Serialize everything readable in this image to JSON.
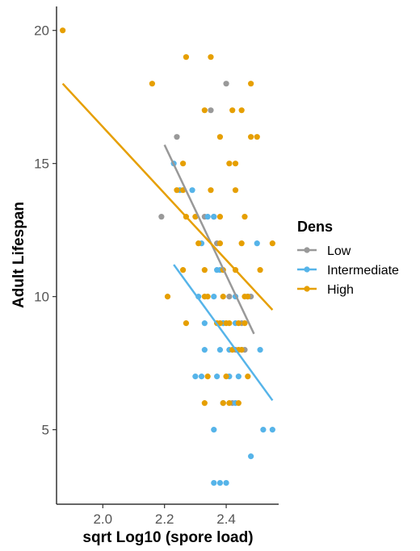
{
  "chart_data": {
    "type": "scatter",
    "title": "",
    "xlabel": "sqrt Log10 (spore load)",
    "ylabel": "Adult Lifespan",
    "xlim": [
      1.85,
      2.57
    ],
    "ylim": [
      2.2,
      20.9
    ],
    "x_ticks": [
      2.0,
      2.2,
      2.4
    ],
    "x_tick_labels": [
      "2.0",
      "2.2",
      "2.4"
    ],
    "y_ticks": [
      5,
      10,
      15,
      20
    ],
    "y_tick_labels": [
      "5",
      "10",
      "15",
      "20"
    ],
    "grid": false,
    "legend": {
      "title": "Dens",
      "position": "right"
    },
    "series": [
      {
        "name": "Low",
        "color": "#999999",
        "points": [
          [
            2.19,
            13
          ],
          [
            2.24,
            16
          ],
          [
            2.35,
            17
          ],
          [
            2.36,
            13
          ],
          [
            2.4,
            18
          ],
          [
            2.37,
            12
          ],
          [
            2.39,
            9
          ],
          [
            2.41,
            10
          ],
          [
            2.43,
            8
          ],
          [
            2.42,
            6
          ],
          [
            2.45,
            9
          ],
          [
            2.46,
            8
          ],
          [
            2.48,
            10
          ],
          [
            2.33,
            13
          ]
        ],
        "trend": [
          [
            2.2,
            15.7
          ],
          [
            2.49,
            8.6
          ]
        ]
      },
      {
        "name": "Intermediate",
        "color": "#56B4E9",
        "points": [
          [
            2.23,
            15
          ],
          [
            2.25,
            14
          ],
          [
            2.29,
            14
          ],
          [
            2.34,
            13
          ],
          [
            2.36,
            13
          ],
          [
            2.32,
            12
          ],
          [
            2.37,
            11
          ],
          [
            2.31,
            10
          ],
          [
            2.36,
            10
          ],
          [
            2.33,
            9
          ],
          [
            2.39,
            9
          ],
          [
            2.43,
            9
          ],
          [
            2.33,
            8
          ],
          [
            2.38,
            8
          ],
          [
            2.41,
            8
          ],
          [
            2.45,
            8
          ],
          [
            2.51,
            8
          ],
          [
            2.3,
            7
          ],
          [
            2.32,
            7
          ],
          [
            2.37,
            7
          ],
          [
            2.41,
            7
          ],
          [
            2.44,
            7
          ],
          [
            2.39,
            6
          ],
          [
            2.43,
            6
          ],
          [
            2.36,
            5
          ],
          [
            2.52,
            5
          ],
          [
            2.55,
            5
          ],
          [
            2.48,
            4
          ],
          [
            2.36,
            3
          ],
          [
            2.38,
            3
          ],
          [
            2.4,
            3
          ],
          [
            2.43,
            10
          ],
          [
            2.47,
            10
          ],
          [
            2.5,
            12
          ],
          [
            2.38,
            11
          ]
        ],
        "trend": [
          [
            2.23,
            11.2
          ],
          [
            2.55,
            6.1
          ]
        ]
      },
      {
        "name": "High",
        "color": "#E69F00",
        "points": [
          [
            1.87,
            20
          ],
          [
            2.16,
            18
          ],
          [
            2.27,
            19
          ],
          [
            2.35,
            19
          ],
          [
            2.48,
            18
          ],
          [
            2.33,
            17
          ],
          [
            2.42,
            17
          ],
          [
            2.45,
            17
          ],
          [
            2.38,
            16
          ],
          [
            2.48,
            16
          ],
          [
            2.5,
            16
          ],
          [
            2.26,
            15
          ],
          [
            2.41,
            15
          ],
          [
            2.43,
            15
          ],
          [
            2.24,
            14
          ],
          [
            2.26,
            14
          ],
          [
            2.35,
            14
          ],
          [
            2.43,
            14
          ],
          [
            2.27,
            13
          ],
          [
            2.3,
            13
          ],
          [
            2.38,
            13
          ],
          [
            2.46,
            13
          ],
          [
            2.31,
            12
          ],
          [
            2.38,
            12
          ],
          [
            2.45,
            12
          ],
          [
            2.55,
            12
          ],
          [
            2.26,
            11
          ],
          [
            2.33,
            11
          ],
          [
            2.39,
            11
          ],
          [
            2.43,
            11
          ],
          [
            2.51,
            11
          ],
          [
            2.21,
            10
          ],
          [
            2.33,
            10
          ],
          [
            2.34,
            10
          ],
          [
            2.39,
            10
          ],
          [
            2.46,
            10
          ],
          [
            2.47,
            10
          ],
          [
            2.27,
            9
          ],
          [
            2.37,
            9
          ],
          [
            2.38,
            9
          ],
          [
            2.4,
            9
          ],
          [
            2.41,
            9
          ],
          [
            2.44,
            9
          ],
          [
            2.46,
            9
          ],
          [
            2.42,
            8
          ],
          [
            2.44,
            8
          ],
          [
            2.45,
            8
          ],
          [
            2.34,
            7
          ],
          [
            2.4,
            7
          ],
          [
            2.47,
            7
          ],
          [
            2.33,
            6
          ],
          [
            2.39,
            6
          ],
          [
            2.41,
            6
          ],
          [
            2.44,
            6
          ]
        ],
        "trend": [
          [
            1.87,
            18.0
          ],
          [
            2.55,
            9.5
          ]
        ]
      }
    ]
  }
}
